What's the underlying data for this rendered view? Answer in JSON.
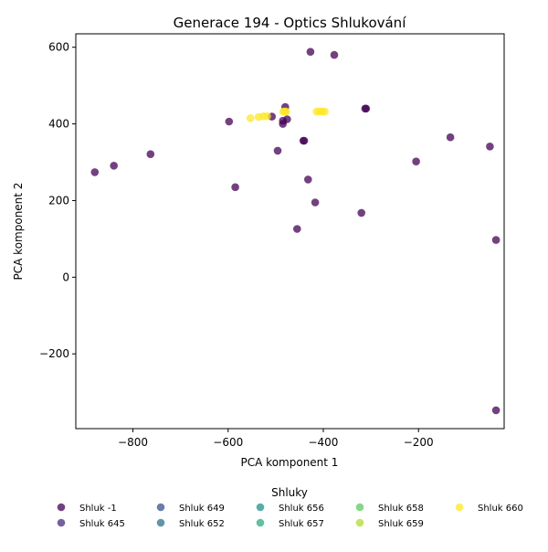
{
  "chart_data": {
    "type": "scatter",
    "title": "Generace 194 - Optics Shlukování",
    "xlabel": "PCA komponent 1",
    "ylabel": "PCA komponent 2",
    "xlim": [
      -920,
      -20
    ],
    "ylim": [
      -395,
      635
    ],
    "xticks": [
      -800,
      -600,
      -400,
      -200
    ],
    "yticks": [
      -200,
      0,
      200,
      400,
      600
    ],
    "grid": false,
    "legend": {
      "title": "Shluky",
      "placement": "bottom",
      "entries": [
        {
          "name": "Shluk -1",
          "color": "#440154"
        },
        {
          "name": "Shluk 645",
          "color": "#472d7b"
        },
        {
          "name": "Shluk 649",
          "color": "#3b528b"
        },
        {
          "name": "Shluk 652",
          "color": "#2c728e"
        },
        {
          "name": "Shluk 656",
          "color": "#21918c"
        },
        {
          "name": "Shluk 657",
          "color": "#28ae80"
        },
        {
          "name": "Shluk 658",
          "color": "#5ec962"
        },
        {
          "name": "Shluk 659",
          "color": "#addc30"
        },
        {
          "name": "Shluk 660",
          "color": "#fde725"
        }
      ]
    },
    "series": [
      {
        "name": "Shluk -1",
        "color": "#440154",
        "points": [
          [
            -880,
            274
          ],
          [
            -840,
            291
          ],
          [
            -763,
            321
          ],
          [
            -598,
            406
          ],
          [
            -585,
            235
          ],
          [
            -508,
            419
          ],
          [
            -496,
            330
          ],
          [
            -485,
            400
          ],
          [
            -485,
            408
          ],
          [
            -480,
            444
          ],
          [
            -476,
            412
          ],
          [
            -455,
            126
          ],
          [
            -442,
            356
          ],
          [
            -440,
            356
          ],
          [
            -432,
            255
          ],
          [
            -427,
            588
          ],
          [
            -417,
            195
          ],
          [
            -377,
            580
          ],
          [
            -320,
            168
          ],
          [
            -312,
            440
          ],
          [
            -310,
            440
          ],
          [
            -205,
            302
          ],
          [
            -133,
            365
          ],
          [
            -50,
            341
          ],
          [
            -37,
            97
          ],
          [
            -37,
            -347
          ]
        ]
      },
      {
        "name": "Shluk 660",
        "color": "#fde725",
        "points": [
          [
            -553,
            415
          ],
          [
            -536,
            418
          ],
          [
            -526,
            420
          ],
          [
            -518,
            420
          ],
          [
            -484,
            432
          ],
          [
            -481,
            432
          ],
          [
            -478,
            432
          ],
          [
            -414,
            432
          ],
          [
            -408,
            432
          ],
          [
            -402,
            432
          ],
          [
            -397,
            432
          ]
        ]
      }
    ]
  }
}
